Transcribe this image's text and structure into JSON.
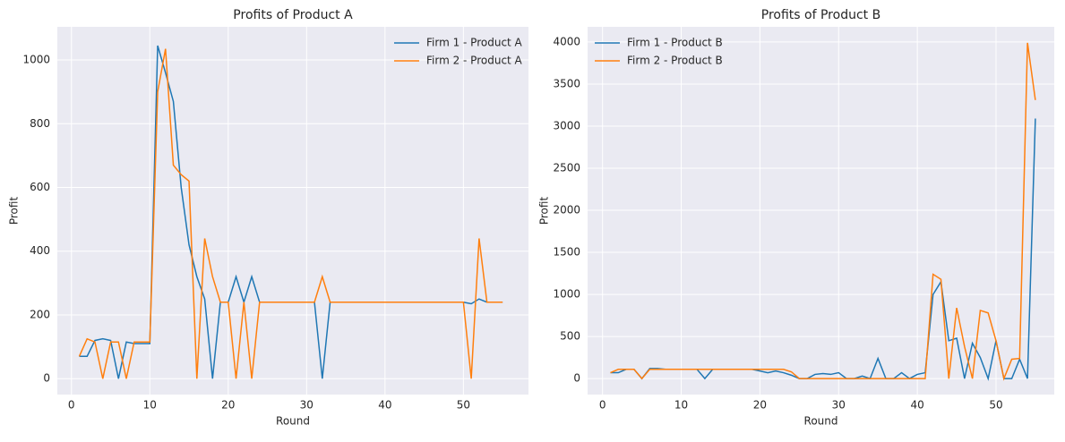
{
  "chart_data": [
    {
      "type": "line",
      "title": "Profits of Product A",
      "x_label": "Round",
      "y_label": "Profit",
      "x": [
        1,
        2,
        3,
        4,
        5,
        6,
        7,
        8,
        9,
        10,
        11,
        12,
        13,
        14,
        15,
        16,
        17,
        18,
        19,
        20,
        21,
        22,
        23,
        24,
        25,
        26,
        27,
        28,
        29,
        30,
        31,
        32,
        33,
        34,
        35,
        36,
        37,
        38,
        39,
        40,
        41,
        42,
        43,
        44,
        45,
        46,
        47,
        48,
        49,
        50,
        51,
        52,
        53,
        54,
        55
      ],
      "series": [
        {
          "name": "Firm 1 - Product A",
          "color": "#1f77b4",
          "values": [
            70,
            70,
            120,
            125,
            120,
            0,
            115,
            110,
            110,
            110,
            1045,
            960,
            870,
            600,
            420,
            320,
            250,
            0,
            240,
            240,
            320,
            240,
            320,
            240,
            240,
            240,
            240,
            240,
            240,
            240,
            240,
            0,
            240,
            240,
            240,
            240,
            240,
            240,
            240,
            240,
            240,
            240,
            240,
            240,
            240,
            240,
            240,
            240,
            240,
            240,
            235,
            250,
            240,
            240,
            240
          ]
        },
        {
          "name": "Firm 2 - Product A",
          "color": "#ff7f0e",
          "values": [
            70,
            125,
            115,
            0,
            115,
            115,
            0,
            115,
            115,
            115,
            900,
            1035,
            670,
            640,
            620,
            0,
            440,
            320,
            240,
            240,
            0,
            240,
            0,
            240,
            240,
            240,
            240,
            240,
            240,
            240,
            240,
            320,
            240,
            240,
            240,
            240,
            240,
            240,
            240,
            240,
            240,
            240,
            240,
            240,
            240,
            240,
            240,
            240,
            240,
            240,
            0,
            440,
            240,
            240,
            240
          ]
        }
      ],
      "xlim": [
        -1.8,
        58.3
      ],
      "ylim": [
        -50,
        1104
      ],
      "xticks": [
        0,
        10,
        20,
        30,
        40,
        50
      ],
      "yticks": [
        0,
        200,
        400,
        600,
        800,
        1000
      ],
      "grid": true,
      "legend": "upper-right"
    },
    {
      "type": "line",
      "title": "Profits of Product B",
      "x_label": "Round",
      "y_label": "Profit",
      "x": [
        1,
        2,
        3,
        4,
        5,
        6,
        7,
        8,
        9,
        10,
        11,
        12,
        13,
        14,
        15,
        16,
        17,
        18,
        19,
        20,
        21,
        22,
        23,
        24,
        25,
        26,
        27,
        28,
        29,
        30,
        31,
        32,
        33,
        34,
        35,
        36,
        37,
        38,
        39,
        40,
        41,
        42,
        43,
        44,
        45,
        46,
        47,
        48,
        49,
        50,
        51,
        52,
        53,
        54,
        55
      ],
      "series": [
        {
          "name": "Firm 1 - Product B",
          "color": "#1f77b4",
          "values": [
            70,
            70,
            110,
            110,
            0,
            120,
            120,
            110,
            110,
            110,
            110,
            110,
            0,
            110,
            110,
            110,
            110,
            110,
            110,
            90,
            70,
            90,
            70,
            40,
            0,
            0,
            50,
            60,
            50,
            70,
            0,
            0,
            30,
            0,
            240,
            0,
            0,
            70,
            0,
            50,
            70,
            1000,
            1150,
            450,
            480,
            0,
            420,
            250,
            0,
            450,
            0,
            0,
            230,
            0,
            3090
          ]
        },
        {
          "name": "Firm 2 - Product B",
          "color": "#ff7f0e",
          "values": [
            70,
            110,
            110,
            110,
            0,
            110,
            110,
            110,
            110,
            110,
            110,
            110,
            110,
            110,
            110,
            110,
            110,
            110,
            110,
            110,
            110,
            110,
            110,
            80,
            0,
            0,
            0,
            0,
            0,
            0,
            0,
            0,
            0,
            0,
            0,
            0,
            0,
            0,
            0,
            0,
            0,
            1240,
            1180,
            0,
            840,
            380,
            0,
            810,
            780,
            450,
            0,
            230,
            240,
            3990,
            3310
          ]
        }
      ],
      "xlim": [
        -1.9,
        57.4
      ],
      "ylim": [
        -190,
        4180
      ],
      "xticks": [
        0,
        10,
        20,
        30,
        40,
        50
      ],
      "yticks": [
        0,
        500,
        1000,
        1500,
        2000,
        2500,
        3000,
        3500,
        4000
      ],
      "grid": true,
      "legend": "upper-left"
    }
  ]
}
